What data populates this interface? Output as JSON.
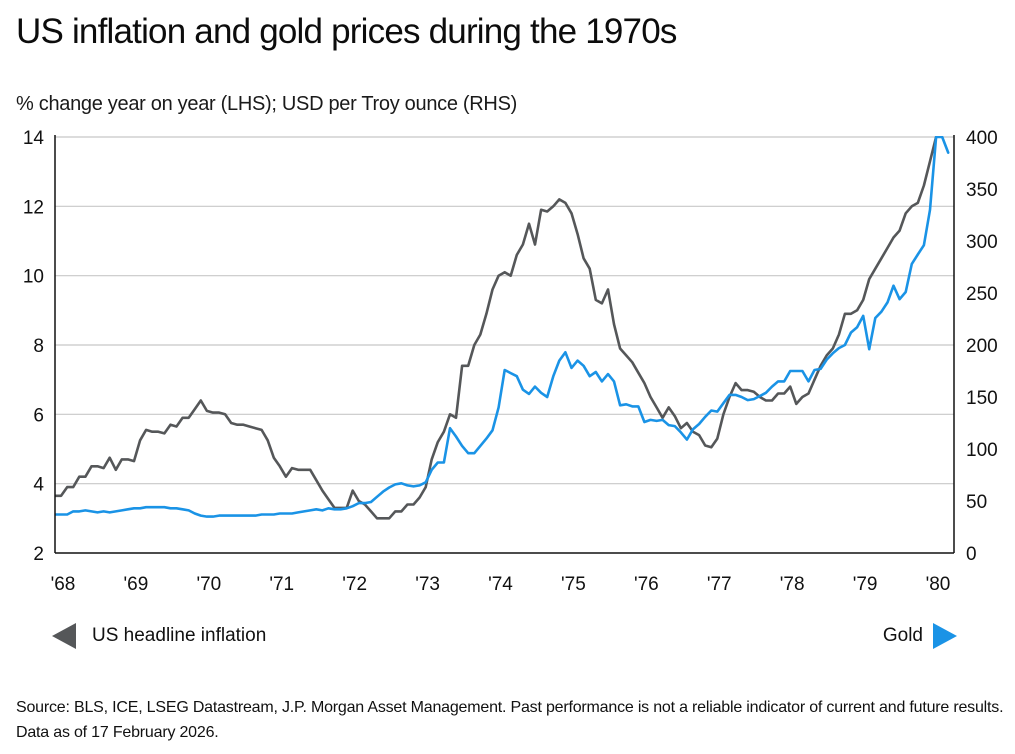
{
  "title": "US inflation and gold prices during the 1970s",
  "subtitle": "% change year on year (LHS); USD per Troy ounce (RHS)",
  "legend": {
    "left_label": "US headline inflation",
    "right_label": "Gold"
  },
  "footer": "Source: BLS, ICE, LSEG Datastream, J.P. Morgan Asset Management. Past performance is not a reliable indicator of current and future results. Data as of 17 February 2026.",
  "colors": {
    "inflation": "#555759",
    "gold": "#1a93e6",
    "grid": "#c8c8c8",
    "axis": "#111111"
  },
  "chart_data": {
    "type": "line",
    "title": "US inflation and gold prices during the 1970s",
    "xlabel": "",
    "ylabel": "% change year on year (LHS)",
    "y2label": "USD per Troy ounce (RHS)",
    "x_start": "1968-01",
    "frequency": "monthly",
    "x_ticks": [
      "'68",
      "'69",
      "'70",
      "'71",
      "'72",
      "'73",
      "'74",
      "'75",
      "'76",
      "'77",
      "'78",
      "'79",
      "'80"
    ],
    "x_range_years": [
      1968.0,
      1980.33
    ],
    "ylim": [
      2,
      14
    ],
    "y_ticks": [
      "2",
      "4",
      "6",
      "8",
      "10",
      "12",
      "14"
    ],
    "y2lim": [
      0,
      400
    ],
    "y2_ticks": [
      "0",
      "50",
      "100",
      "150",
      "200",
      "250",
      "300",
      "350",
      "400"
    ],
    "grid": true,
    "legend_position": "bottom",
    "series": [
      {
        "name": "US headline inflation",
        "axis": "left",
        "values": [
          3.65,
          3.65,
          3.9,
          3.9,
          4.2,
          4.2,
          4.5,
          4.5,
          4.45,
          4.75,
          4.4,
          4.7,
          4.7,
          4.65,
          5.25,
          5.55,
          5.5,
          5.5,
          5.45,
          5.7,
          5.65,
          5.9,
          5.9,
          6.15,
          6.4,
          6.1,
          6.05,
          6.05,
          6.0,
          5.75,
          5.7,
          5.7,
          5.65,
          5.6,
          5.55,
          5.25,
          4.75,
          4.5,
          4.2,
          4.45,
          4.4,
          4.4,
          4.4,
          4.1,
          3.8,
          3.55,
          3.3,
          3.3,
          3.3,
          3.8,
          3.5,
          3.4,
          3.2,
          3.0,
          3.0,
          3.0,
          3.2,
          3.2,
          3.4,
          3.4,
          3.6,
          3.9,
          4.7,
          5.2,
          5.5,
          6.0,
          5.9,
          7.4,
          7.4,
          8.0,
          8.3,
          8.9,
          9.6,
          10.0,
          10.1,
          10.0,
          10.6,
          10.9,
          11.5,
          10.9,
          11.9,
          11.85,
          12.0,
          12.2,
          12.1,
          11.8,
          11.2,
          10.5,
          10.2,
          9.3,
          9.2,
          9.6,
          8.6,
          7.9,
          7.7,
          7.5,
          7.2,
          6.9,
          6.5,
          6.2,
          5.9,
          6.2,
          5.95,
          5.6,
          5.75,
          5.5,
          5.4,
          5.1,
          5.05,
          5.3,
          6.0,
          6.5,
          6.9,
          6.7,
          6.7,
          6.65,
          6.5,
          6.4,
          6.4,
          6.6,
          6.6,
          6.8,
          6.3,
          6.5,
          6.6,
          7.0,
          7.4,
          7.7,
          7.9,
          8.3,
          8.9,
          8.9,
          9.0,
          9.3,
          9.9,
          10.2,
          10.5,
          10.8,
          11.1,
          11.3,
          11.8,
          12.0,
          12.1,
          12.6,
          13.3,
          14.0,
          14.5
        ]
      },
      {
        "name": "Gold",
        "axis": "right",
        "values": [
          37,
          37,
          37,
          40,
          40,
          41,
          40,
          39,
          40,
          39,
          40,
          41,
          42,
          43,
          43,
          44,
          44,
          44,
          44,
          43,
          43,
          42,
          41,
          38,
          36,
          35,
          35,
          36,
          36,
          36,
          36,
          36,
          36,
          36,
          37,
          37,
          37,
          38,
          38,
          38,
          39,
          40,
          41,
          42,
          41,
          43,
          42,
          42,
          43,
          45,
          48,
          48,
          49,
          54,
          59,
          63,
          66,
          67,
          65,
          64,
          65,
          68,
          80,
          87,
          87,
          120,
          112,
          103,
          96,
          96,
          103,
          110,
          118,
          140,
          176,
          173,
          170,
          157,
          153,
          160,
          154,
          150,
          170,
          185,
          193,
          178,
          185,
          180,
          170,
          174,
          165,
          172,
          165,
          142,
          143,
          141,
          141,
          126,
          128,
          127,
          128,
          123,
          122,
          116,
          109,
          119,
          124,
          131,
          137,
          136,
          144,
          152,
          152,
          150,
          147,
          148,
          151,
          154,
          160,
          165,
          165,
          175,
          175,
          175,
          165,
          176,
          177,
          186,
          192,
          197,
          200,
          212,
          217,
          228,
          196,
          226,
          232,
          241,
          257,
          244,
          251,
          278,
          287,
          296,
          330,
          400,
          400,
          385
        ]
      }
    ]
  }
}
